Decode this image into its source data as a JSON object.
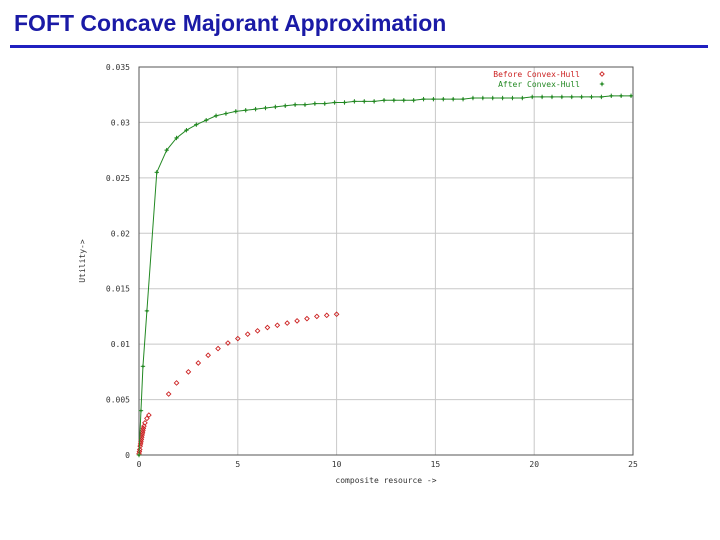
{
  "slide": {
    "title": "FOFT Concave Majorant Approximation"
  },
  "colors": {
    "title": "#1a1aa6",
    "before": "#cc2222",
    "after": "#228822",
    "grid": "#c8c8c8",
    "frame": "#555555"
  },
  "chart_data": {
    "type": "scatter",
    "title": "",
    "xlabel": "composite resource ->",
    "ylabel": "Utility->",
    "xlim": [
      0,
      25
    ],
    "ylim": [
      0,
      0.035
    ],
    "xticks": [
      0,
      5,
      10,
      15,
      20,
      25
    ],
    "xtick_labels": [
      "0",
      "5",
      "10",
      "15",
      "20",
      "25"
    ],
    "yticks": [
      0,
      0.005,
      0.01,
      0.015,
      0.02,
      0.025,
      0.03,
      0.035
    ],
    "ytick_labels": [
      "0",
      "0.005",
      "0.01",
      "0.015",
      "0.02",
      "0.025",
      "0.03",
      "0.035"
    ],
    "grid": true,
    "legend_position": "top-right",
    "series": [
      {
        "name": "Before Convex-Hull",
        "marker": "diamond",
        "color": "#cc2222",
        "x": [
          0.0,
          0.02,
          0.04,
          0.06,
          0.08,
          0.1,
          0.12,
          0.14,
          0.16,
          0.18,
          0.2,
          0.22,
          0.25,
          0.3,
          0.4,
          0.5,
          1.5,
          1.9,
          2.5,
          3.0,
          3.5,
          4.0,
          4.5,
          5.0,
          5.5,
          6.0,
          6.5,
          7.0,
          7.5,
          8.0,
          8.5,
          9.0,
          9.5,
          10.0
        ],
        "y": [
          0.0001,
          0.0003,
          0.0005,
          0.0008,
          0.001,
          0.0012,
          0.0014,
          0.0016,
          0.0018,
          0.002,
          0.0022,
          0.0024,
          0.0026,
          0.0029,
          0.0033,
          0.0036,
          0.0055,
          0.0065,
          0.0075,
          0.0083,
          0.009,
          0.0096,
          0.0101,
          0.0105,
          0.0109,
          0.0112,
          0.0115,
          0.0117,
          0.0119,
          0.0121,
          0.0123,
          0.0125,
          0.0126,
          0.0127
        ]
      },
      {
        "name": "After Convex-Hull",
        "marker": "plus",
        "color": "#228822",
        "x": [
          0.0,
          0.1,
          0.2,
          0.4,
          0.9,
          1.4,
          1.9,
          2.4,
          2.9,
          3.4,
          3.9,
          4.4,
          4.9,
          5.4,
          5.9,
          6.4,
          6.9,
          7.4,
          7.9,
          8.4,
          8.9,
          9.4,
          9.9,
          10.4,
          10.9,
          11.4,
          11.9,
          12.4,
          12.9,
          13.4,
          13.9,
          14.4,
          14.9,
          15.4,
          15.9,
          16.4,
          16.9,
          17.4,
          17.9,
          18.4,
          18.9,
          19.4,
          19.9,
          20.4,
          20.9,
          21.4,
          21.9,
          22.4,
          22.9,
          23.4,
          23.9,
          24.4,
          24.9
        ],
        "y": [
          0.0,
          0.004,
          0.008,
          0.013,
          0.0255,
          0.0275,
          0.0286,
          0.0293,
          0.0298,
          0.0302,
          0.0306,
          0.0308,
          0.031,
          0.0311,
          0.0312,
          0.0313,
          0.0314,
          0.0315,
          0.0316,
          0.0316,
          0.0317,
          0.0317,
          0.0318,
          0.0318,
          0.0319,
          0.0319,
          0.0319,
          0.032,
          0.032,
          0.032,
          0.032,
          0.0321,
          0.0321,
          0.0321,
          0.0321,
          0.0321,
          0.0322,
          0.0322,
          0.0322,
          0.0322,
          0.0322,
          0.0322,
          0.0323,
          0.0323,
          0.0323,
          0.0323,
          0.0323,
          0.0323,
          0.0323,
          0.0323,
          0.0324,
          0.0324,
          0.0324
        ]
      }
    ]
  }
}
